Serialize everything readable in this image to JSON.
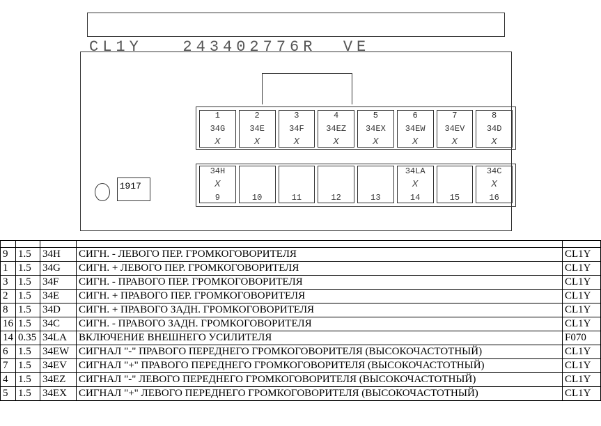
{
  "header": {
    "left": "CL1Y",
    "mid": "243402776R",
    "right": "VE"
  },
  "fuse_label": "1917",
  "pins_top": [
    {
      "num": "1",
      "code": "34G",
      "x": true
    },
    {
      "num": "2",
      "code": "34E",
      "x": true
    },
    {
      "num": "3",
      "code": "34F",
      "x": true
    },
    {
      "num": "4",
      "code": "34EZ",
      "x": true
    },
    {
      "num": "5",
      "code": "34EX",
      "x": true
    },
    {
      "num": "6",
      "code": "34EW",
      "x": true
    },
    {
      "num": "7",
      "code": "34EV",
      "x": true
    },
    {
      "num": "8",
      "code": "34D",
      "x": true
    }
  ],
  "pins_bot": [
    {
      "num": "9",
      "code": "34H",
      "x": true
    },
    {
      "num": "10",
      "code": "",
      "x": false
    },
    {
      "num": "11",
      "code": "",
      "x": false
    },
    {
      "num": "12",
      "code": "",
      "x": false
    },
    {
      "num": "13",
      "code": "",
      "x": false
    },
    {
      "num": "14",
      "code": "34LA",
      "x": true
    },
    {
      "num": "15",
      "code": "",
      "x": false
    },
    {
      "num": "16",
      "code": "34C",
      "x": true
    }
  ],
  "table_rows": [
    {
      "n": "9",
      "g": "1.5",
      "c": "34H",
      "desc": "СИГН. - ЛЕВОГО ПЕР. ГРОМКОГОВОРИТЕЛЯ",
      "conn": "CL1Y"
    },
    {
      "n": "1",
      "g": "1.5",
      "c": "34G",
      "desc": "СИГН. + ЛЕВОГО ПЕР. ГРОМКОГОВОРИТЕЛЯ",
      "conn": "CL1Y"
    },
    {
      "n": "3",
      "g": "1.5",
      "c": "34F",
      "desc": "СИГН. - ПРАВОГО ПЕР. ГРОМКОГОВОРИТЕЛЯ",
      "conn": "CL1Y"
    },
    {
      "n": "2",
      "g": "1.5",
      "c": "34E",
      "desc": "СИГН. + ПРАВОГО ПЕР. ГРОМКОГОВОРИТЕЛЯ",
      "conn": "CL1Y"
    },
    {
      "n": "8",
      "g": "1.5",
      "c": "34D",
      "desc": "СИГН. + ПРАВОГО ЗАДН. ГРОМКОГОВОРИТЕЛЯ",
      "conn": "CL1Y"
    },
    {
      "n": "16",
      "g": "1.5",
      "c": "34C",
      "desc": "СИГН. - ПРАВОГО ЗАДН. ГРОМКОГОВОРИТЕЛЯ",
      "conn": "CL1Y"
    },
    {
      "n": "14",
      "g": "0.35",
      "c": "34LA",
      "desc": "ВКЛЮЧЕНИЕ ВНЕШНЕГО УСИЛИТЕЛЯ",
      "conn": "F070"
    },
    {
      "n": "6",
      "g": "1.5",
      "c": "34EW",
      "desc": "СИГНАЛ \"-\" ПРАВОГО ПЕРЕДНЕГО ГРОМКОГОВОРИТЕЛЯ (ВЫСОКОЧАСТОТНЫЙ)",
      "conn": "CL1Y"
    },
    {
      "n": "7",
      "g": "1.5",
      "c": "34EV",
      "desc": "СИГНАЛ \"+\" ПРАВОГО ПЕРЕДНЕГО ГРОМКОГОВОРИТЕЛЯ (ВЫСОКОЧАСТОТНЫЙ)",
      "conn": "CL1Y"
    },
    {
      "n": "4",
      "g": "1.5",
      "c": "34EZ",
      "desc": "СИГНАЛ \"-\" ЛЕВОГО ПЕРЕДНЕГО ГРОМКОГОВОРИТЕЛЯ (ВЫСОКОЧАСТОТНЫЙ)",
      "conn": "CL1Y"
    },
    {
      "n": "5",
      "g": "1.5",
      "c": "34EX",
      "desc": "СИГНАЛ \"+\" ЛЕВОГО ПЕРЕДНЕГО ГРОМКОГОВОРИТЕЛЯ (ВЫСОКОЧАСТОТНЫЙ)",
      "conn": "CL1Y"
    }
  ],
  "colors": {
    "line": "#333",
    "text": "#333",
    "bg": "#fff"
  }
}
